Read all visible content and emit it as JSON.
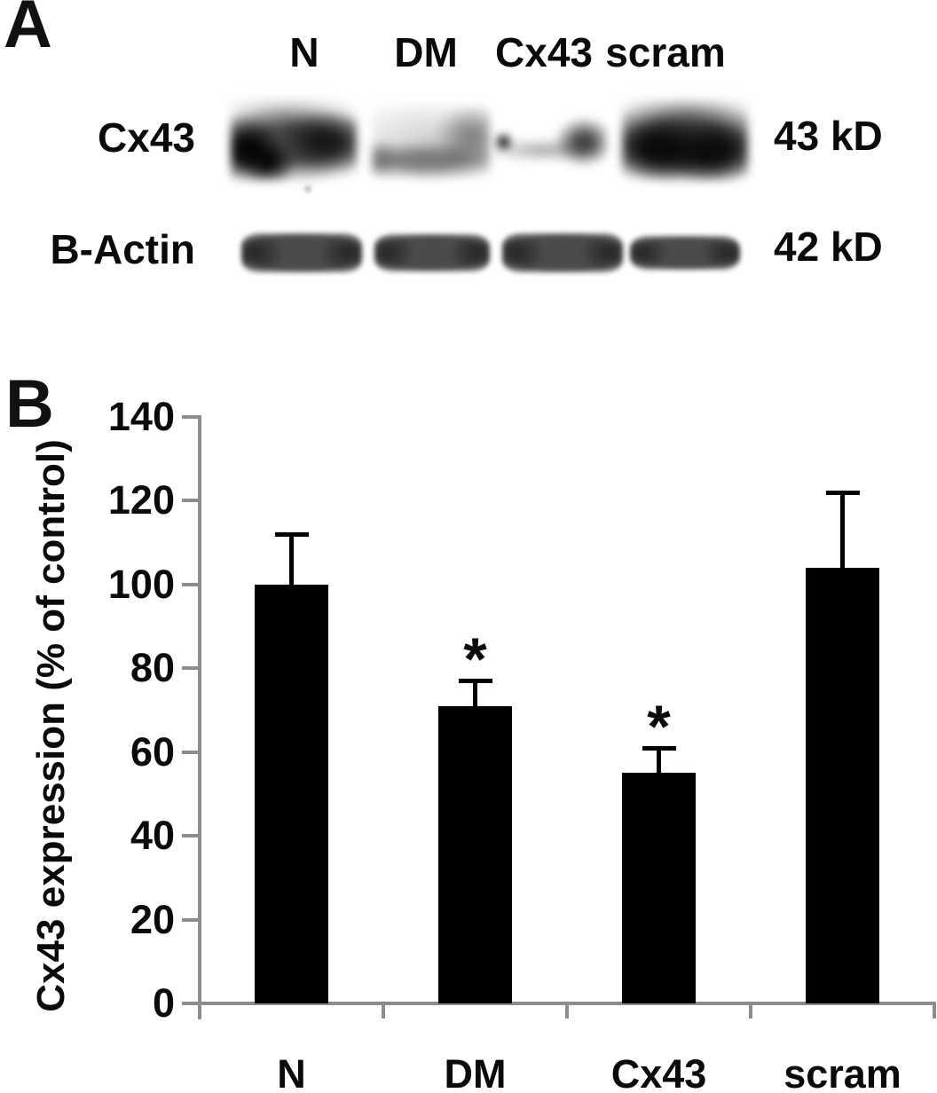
{
  "panel_a": {
    "label": "A",
    "lane_labels": [
      "N",
      "DM",
      "Cx43",
      "scram"
    ],
    "rows": [
      {
        "label": "Cx43",
        "weight_label": "43 kD"
      },
      {
        "label": "B-Actin",
        "weight_label": "42 kD"
      }
    ]
  },
  "panel_b": {
    "label": "B"
  },
  "chart_data": {
    "type": "bar",
    "title": "",
    "categories": [
      "N",
      "DM",
      "Cx43",
      "scram"
    ],
    "values": [
      100,
      71,
      55,
      104
    ],
    "errors_plus": [
      12,
      6,
      6,
      18
    ],
    "significance": [
      false,
      true,
      true,
      false
    ],
    "sig_symbol": "*",
    "xlabel": "",
    "ylabel": "Cx43 expression (% of control)",
    "ylim": [
      0,
      140
    ],
    "yticks": [
      0,
      20,
      40,
      60,
      80,
      100,
      120,
      140
    ],
    "bar_color": "#000000",
    "axis_color": "#8c8c8c",
    "grid": false,
    "legend": null
  }
}
